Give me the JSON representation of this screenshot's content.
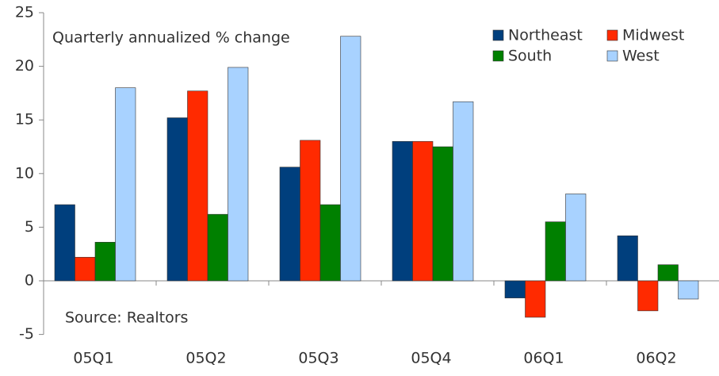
{
  "chart_data": {
    "type": "bar",
    "annotations": [
      "Quarterly annualized % change",
      "Source: Realtors"
    ],
    "categories": [
      "05Q1",
      "05Q2",
      "05Q3",
      "05Q4",
      "06Q1",
      "06Q2"
    ],
    "series": [
      {
        "name": "Northeast",
        "color": "#003f7d",
        "values": [
          7.1,
          15.2,
          10.6,
          13.0,
          -1.6,
          4.2
        ]
      },
      {
        "name": "Midwest",
        "color": "#ff2a00",
        "values": [
          2.2,
          17.7,
          13.1,
          13.0,
          -3.4,
          -2.8
        ]
      },
      {
        "name": "South",
        "color": "#008000",
        "values": [
          3.6,
          6.2,
          7.1,
          12.5,
          5.5,
          1.5
        ]
      },
      {
        "name": "West",
        "color": "#a8d2ff",
        "values": [
          18.0,
          19.9,
          22.8,
          16.7,
          8.1,
          -1.7
        ]
      }
    ],
    "ylim": [
      -5,
      25
    ],
    "yticks": [
      -5,
      0,
      5,
      10,
      15,
      20,
      25
    ],
    "grid": false,
    "legend": "top-right"
  }
}
